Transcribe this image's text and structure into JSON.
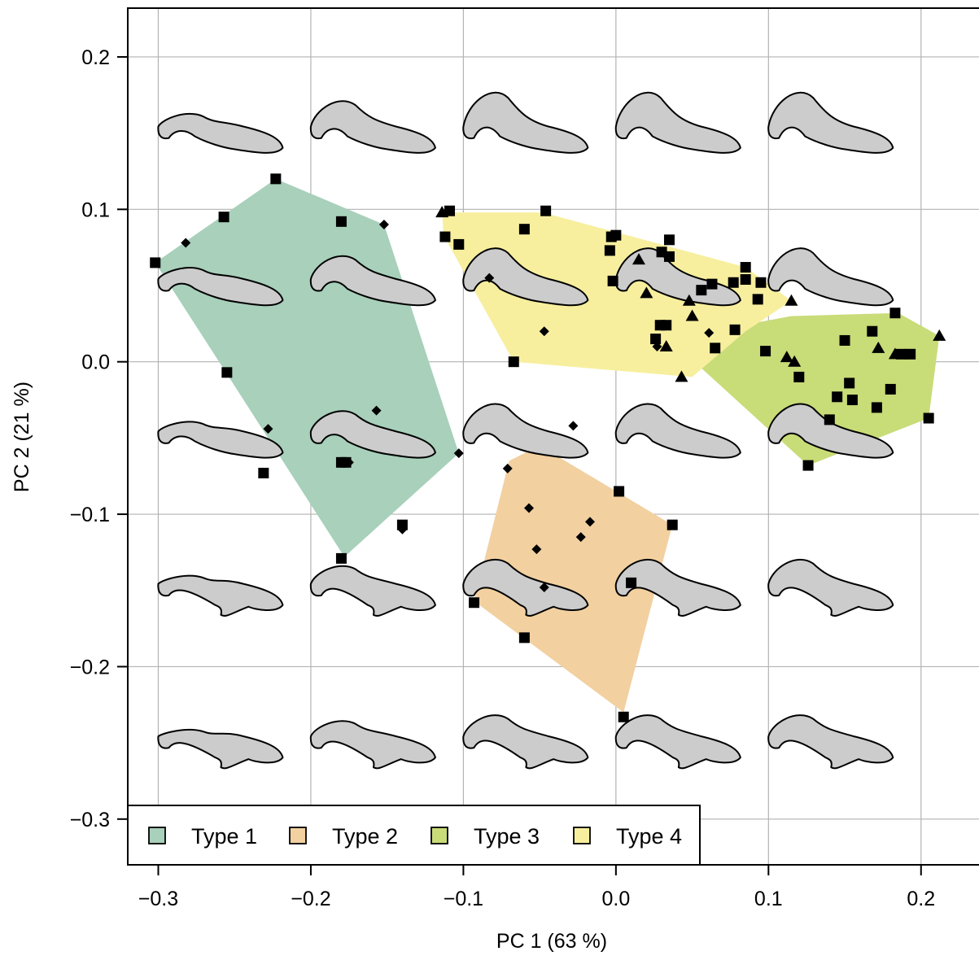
{
  "chart_data": {
    "type": "scatter",
    "xlabel": "PC 1 (63 %)",
    "ylabel": "PC 2 (21 %)",
    "xlim": [
      -0.32,
      0.238
    ],
    "ylim": [
      -0.33,
      0.232
    ],
    "x_ticks": [
      -0.3,
      -0.2,
      -0.1,
      0.0,
      0.1,
      0.2
    ],
    "x_tick_labels": [
      "−0.3",
      "−0.2",
      "−0.1",
      "0.0",
      "0.1",
      "0.2"
    ],
    "y_ticks": [
      0.2,
      0.1,
      0.0,
      -0.1,
      -0.2,
      -0.3
    ],
    "y_tick_labels": [
      "0.2",
      "0.1",
      "0.0",
      "−0.1",
      "−0.2",
      "−0.3"
    ],
    "grid": true,
    "legend_position": "bottom-left",
    "legend": [
      {
        "label": "Type 1",
        "color": "#a8d0bb"
      },
      {
        "label": "Type 2",
        "color": "#f2d0a0"
      },
      {
        "label": "Type 3",
        "color": "#c8dc78"
      },
      {
        "label": "Type 4",
        "color": "#f7ef9e"
      }
    ],
    "hulls": [
      {
        "name": "Type 1",
        "color": "#a8d0bb",
        "points": [
          [
            -0.302,
            0.065
          ],
          [
            -0.223,
            0.12
          ],
          [
            -0.152,
            0.09
          ],
          [
            -0.103,
            -0.06
          ],
          [
            -0.178,
            -0.128
          ],
          [
            -0.255,
            -0.008
          ]
        ]
      },
      {
        "name": "Type 2",
        "color": "#f2d0a0",
        "points": [
          [
            -0.05,
            -0.055
          ],
          [
            0.037,
            -0.107
          ],
          [
            0.005,
            -0.23
          ],
          [
            -0.093,
            -0.157
          ],
          [
            -0.07,
            -0.065
          ]
        ]
      },
      {
        "name": "Type 3",
        "color": "#c8dc78",
        "points": [
          [
            0.035,
            0.015
          ],
          [
            0.115,
            0.03
          ],
          [
            0.185,
            0.032
          ],
          [
            0.212,
            0.017
          ],
          [
            0.205,
            -0.037
          ],
          [
            0.126,
            -0.068
          ]
        ]
      },
      {
        "name": "Type 4",
        "color": "#f7ef9e",
        "points": [
          [
            -0.114,
            0.098
          ],
          [
            -0.048,
            0.098
          ],
          [
            0.085,
            0.062
          ],
          [
            0.115,
            0.04
          ],
          [
            0.085,
            0.02
          ],
          [
            0.05,
            -0.01
          ],
          [
            -0.067,
            0.0
          ],
          [
            -0.113,
            0.083
          ]
        ]
      }
    ],
    "shape_grid": {
      "x": [
        -0.26,
        -0.16,
        -0.06,
        0.04,
        0.14
      ],
      "y": [
        0.15,
        0.05,
        -0.05,
        -0.15,
        -0.25
      ]
    },
    "series": [
      {
        "marker": "square",
        "points": [
          [
            -0.302,
            0.065
          ],
          [
            -0.223,
            0.12
          ],
          [
            -0.257,
            0.095
          ],
          [
            -0.18,
            0.092
          ],
          [
            -0.255,
            -0.007
          ],
          [
            -0.231,
            -0.073
          ],
          [
            -0.18,
            -0.066
          ],
          [
            -0.177,
            -0.066
          ],
          [
            -0.14,
            -0.107
          ],
          [
            -0.18,
            -0.129
          ],
          [
            -0.109,
            0.099
          ],
          [
            -0.112,
            0.082
          ],
          [
            -0.103,
            0.077
          ],
          [
            -0.06,
            0.087
          ],
          [
            -0.046,
            0.099
          ],
          [
            -0.067,
            0.0
          ],
          [
            -0.003,
            0.082
          ],
          [
            0.0,
            0.083
          ],
          [
            -0.004,
            0.073
          ],
          [
            -0.002,
            0.053
          ],
          [
            0.035,
            0.08
          ],
          [
            0.03,
            0.072
          ],
          [
            0.035,
            0.069
          ],
          [
            0.029,
            0.024
          ],
          [
            0.033,
            0.024
          ],
          [
            0.026,
            0.015
          ],
          [
            0.056,
            0.047
          ],
          [
            0.063,
            0.051
          ],
          [
            0.077,
            0.052
          ],
          [
            0.085,
            0.062
          ],
          [
            0.085,
            0.054
          ],
          [
            0.095,
            0.052
          ],
          [
            0.093,
            0.041
          ],
          [
            0.065,
            0.009
          ],
          [
            0.078,
            0.021
          ],
          [
            0.098,
            0.007
          ],
          [
            0.12,
            -0.01
          ],
          [
            0.15,
            0.014
          ],
          [
            0.168,
            0.02
          ],
          [
            0.183,
            0.032
          ],
          [
            0.187,
            0.005
          ],
          [
            0.193,
            0.005
          ],
          [
            0.153,
            -0.014
          ],
          [
            0.145,
            -0.023
          ],
          [
            0.155,
            -0.025
          ],
          [
            0.171,
            -0.03
          ],
          [
            0.18,
            -0.018
          ],
          [
            0.14,
            -0.038
          ],
          [
            0.126,
            -0.068
          ],
          [
            0.205,
            -0.037
          ],
          [
            0.002,
            -0.085
          ],
          [
            0.037,
            -0.107
          ],
          [
            0.01,
            -0.145
          ],
          [
            -0.093,
            -0.158
          ],
          [
            -0.06,
            -0.181
          ],
          [
            0.005,
            -0.233
          ]
        ]
      },
      {
        "marker": "diamond",
        "points": [
          [
            -0.282,
            0.078
          ],
          [
            -0.152,
            0.09
          ],
          [
            -0.228,
            -0.044
          ],
          [
            -0.157,
            -0.032
          ],
          [
            -0.175,
            -0.066
          ],
          [
            -0.103,
            -0.06
          ],
          [
            -0.14,
            -0.11
          ],
          [
            -0.083,
            0.055
          ],
          [
            -0.047,
            0.02
          ],
          [
            0.027,
            0.01
          ],
          [
            0.061,
            0.019
          ],
          [
            -0.071,
            -0.07
          ],
          [
            -0.057,
            -0.096
          ],
          [
            -0.028,
            -0.042
          ],
          [
            -0.017,
            -0.105
          ],
          [
            -0.023,
            -0.115
          ],
          [
            -0.052,
            -0.123
          ],
          [
            -0.047,
            -0.148
          ]
        ]
      },
      {
        "marker": "triangle",
        "points": [
          [
            -0.114,
            0.098
          ],
          [
            0.015,
            0.067
          ],
          [
            0.02,
            0.045
          ],
          [
            0.048,
            0.04
          ],
          [
            0.05,
            0.03
          ],
          [
            0.115,
            0.04
          ],
          [
            0.033,
            0.01
          ],
          [
            0.043,
            -0.01
          ],
          [
            0.112,
            0.003
          ],
          [
            0.117,
            0.0
          ],
          [
            0.172,
            0.009
          ],
          [
            0.183,
            0.005
          ],
          [
            0.212,
            0.017
          ]
        ]
      }
    ]
  }
}
